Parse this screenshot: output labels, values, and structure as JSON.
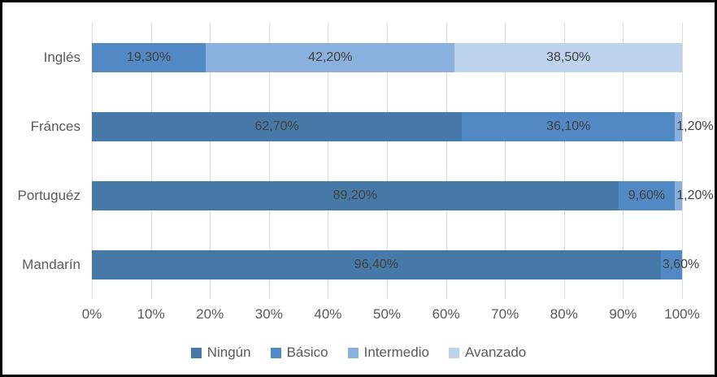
{
  "chart_data": {
    "type": "bar",
    "variant": "horizontal-stacked",
    "title": "",
    "categories": [
      "Inglés",
      "Fránces",
      "Portuguéz",
      "Mandarín"
    ],
    "series": [
      {
        "name": "Ningún",
        "color": "#4779A8",
        "values": [
          0,
          62.7,
          89.2,
          96.4
        ],
        "labels": [
          "",
          "62,70%",
          "89,20%",
          "96,40%"
        ]
      },
      {
        "name": "Básico",
        "color": "#5289C4",
        "values": [
          19.3,
          36.1,
          9.6,
          3.6
        ],
        "labels": [
          "19,30%",
          "36,10%",
          "9,60%",
          "3,60%"
        ]
      },
      {
        "name": "Intermedio",
        "color": "#8AB0DD",
        "values": [
          42.2,
          1.2,
          1.2,
          0
        ],
        "labels": [
          "42,20%",
          "1,20%",
          "1,20%",
          ""
        ]
      },
      {
        "name": "Avanzado",
        "color": "#BDD2EC",
        "values": [
          38.5,
          0,
          0,
          0
        ],
        "labels": [
          "38,50%",
          "",
          "",
          ""
        ]
      }
    ],
    "x_ticks": [
      "0%",
      "10%",
      "20%",
      "30%",
      "40%",
      "50%",
      "60%",
      "70%",
      "80%",
      "90%",
      "100%"
    ],
    "xlim": [
      0,
      100
    ],
    "gridlines": "vertical",
    "legend_position": "bottom",
    "colors": {
      "axis_text": "#595959",
      "category_text": "#595959",
      "data_label_text": "#404040",
      "gridline": "#D9D9D9",
      "frame_border": "#000000",
      "background": "#FFFFFF"
    }
  }
}
